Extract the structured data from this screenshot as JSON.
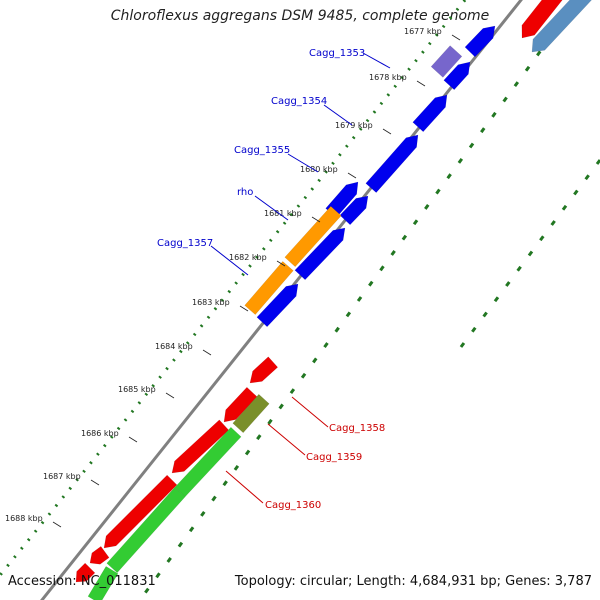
{
  "title": "Chloroflexus aggregans DSM 9485, complete genome",
  "footer": {
    "accession": "Accession: NC_011831",
    "summary": "Topology: circular; Length: 4,684,931 bp; Genes: 3,787"
  },
  "ticks": [
    {
      "label": "1677 kbp"
    },
    {
      "label": "1678 kbp"
    },
    {
      "label": "1679 kbp"
    },
    {
      "label": "1680 kbp"
    },
    {
      "label": "1681 kbp"
    },
    {
      "label": "1682 kbp"
    },
    {
      "label": "1683 kbp"
    },
    {
      "label": "1684 kbp"
    },
    {
      "label": "1685 kbp"
    },
    {
      "label": "1686 kbp"
    },
    {
      "label": "1687 kbp"
    },
    {
      "label": "1688 kbp"
    }
  ],
  "gene_labels": {
    "cagg_1353": "Cagg_1353",
    "cagg_1354": "Cagg_1354",
    "cagg_1355": "Cagg_1355",
    "rho": "rho",
    "cagg_1357": "Cagg_1357",
    "cagg_1358": "Cagg_1358",
    "cagg_1359": "Cagg_1359",
    "cagg_1360": "Cagg_1360"
  },
  "colors": {
    "backbone": "#808080",
    "forward_cds": "#0000ee",
    "highlight_cds": "#ff9900",
    "purple_cds": "#7766cc",
    "reverse_cds": "#ee0000",
    "olive_cds": "#7a8f2a",
    "green_cds": "#33cc33",
    "steelblue_cds": "#5a8fc0",
    "tick_dots": "#227722",
    "label_blue": "#0000cc",
    "label_red": "#cc0000"
  }
}
